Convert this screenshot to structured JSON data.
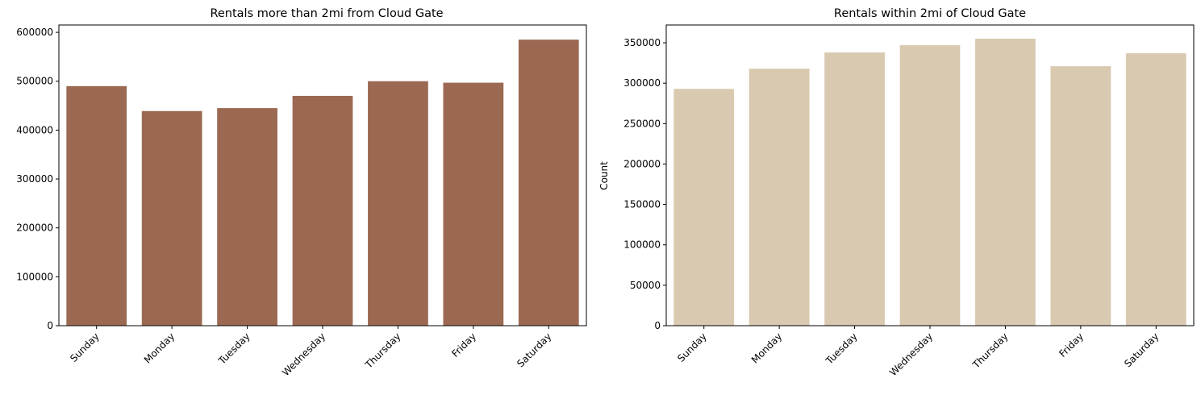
{
  "chart_data": [
    {
      "type": "bar",
      "title": "Rentals more than 2mi from Cloud Gate",
      "xlabel": "",
      "ylabel": "",
      "categories": [
        "Sunday",
        "Monday",
        "Tuesday",
        "Wednesday",
        "Thursday",
        "Friday",
        "Saturday"
      ],
      "values": [
        490000,
        439000,
        445000,
        470000,
        500000,
        497000,
        585000
      ],
      "ylim": [
        0,
        615000
      ],
      "yticks": [
        0,
        100000,
        200000,
        300000,
        400000,
        500000,
        600000
      ],
      "ytick_labels": [
        "0",
        "100000",
        "200000",
        "300000",
        "400000",
        "500000",
        "600000"
      ],
      "color": "#9b6952",
      "grid": false
    },
    {
      "type": "bar",
      "title": "Rentals within 2mi of Cloud Gate",
      "xlabel": "",
      "ylabel": "Count",
      "categories": [
        "Sunday",
        "Monday",
        "Tuesday",
        "Wednesday",
        "Thursday",
        "Friday",
        "Saturday"
      ],
      "values": [
        293000,
        318000,
        338000,
        347000,
        355000,
        321000,
        337000
      ],
      "ylim": [
        0,
        372000
      ],
      "yticks": [
        0,
        50000,
        100000,
        150000,
        200000,
        250000,
        300000,
        350000
      ],
      "ytick_labels": [
        "0",
        "50000",
        "100000",
        "150000",
        "200000",
        "250000",
        "300000",
        "350000"
      ],
      "color": "#d9c9b0",
      "grid": false
    }
  ]
}
